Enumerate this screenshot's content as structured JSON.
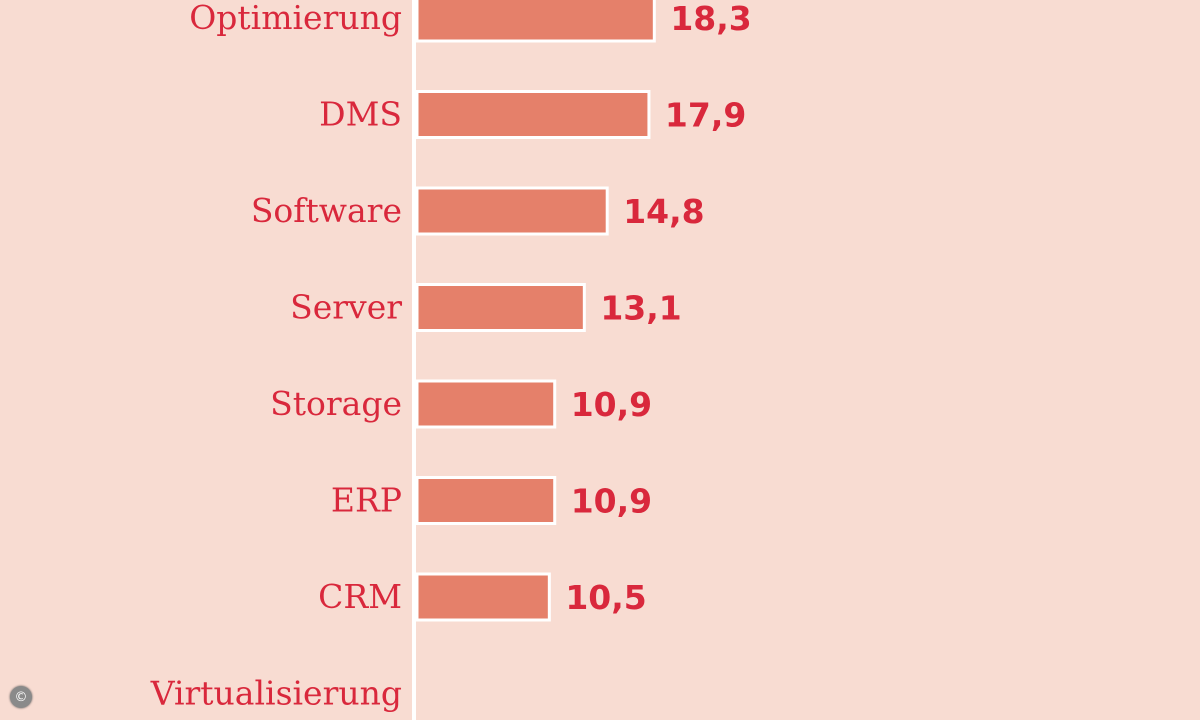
{
  "chart_data": {
    "type": "bar",
    "orientation": "horizontal",
    "categories": [
      "Optimierung",
      "DMS",
      "Software",
      "Server",
      "Storage",
      "ERP",
      "CRM",
      "Virtualisierung"
    ],
    "values": [
      18.3,
      17.9,
      14.8,
      13.1,
      10.9,
      10.9,
      10.5,
      null
    ],
    "value_labels": [
      "18,3",
      "17,9",
      "14,8",
      "13,1",
      "10,9",
      "10,9",
      "10,5",
      ""
    ],
    "title": "",
    "xlabel": "",
    "ylabel": "",
    "grid": false,
    "colors": {
      "bar": "#e5806a",
      "text": "#d9283c",
      "background": "#f8dcd2",
      "axis": "#ffffff"
    }
  },
  "copyright_symbol": "©"
}
